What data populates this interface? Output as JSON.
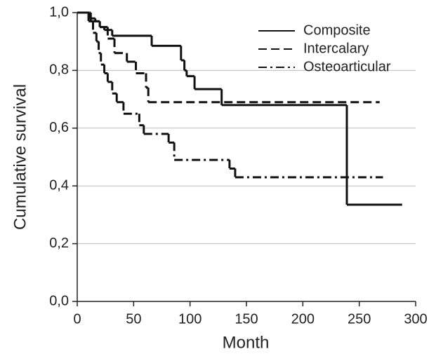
{
  "chart_data": {
    "type": "step",
    "x_label": "Month",
    "y_label": "Cumulative survival",
    "xlim": [
      0,
      300
    ],
    "xticks": [
      0,
      50,
      100,
      150,
      200,
      250,
      300
    ],
    "ylim": [
      0,
      1
    ],
    "yticks": [
      {
        "value": 0,
        "label": "0,0"
      },
      {
        "value": 0.2,
        "label": "0,2"
      },
      {
        "value": 0.4,
        "label": "0,4"
      },
      {
        "value": 0.6,
        "label": "0,6"
      },
      {
        "value": 0.8,
        "label": "0,8"
      },
      {
        "value": 1,
        "label": "1,0"
      }
    ],
    "grid": true,
    "legend": "top-right",
    "series": [
      {
        "name": "Composite",
        "color": "#111111",
        "dash": "solid",
        "x": [
          0,
          11,
          16,
          20,
          24,
          31,
          66,
          92,
          95,
          97,
          104,
          128,
          239,
          288
        ],
        "values": [
          1,
          0.98,
          0.97,
          0.95,
          0.94,
          0.92,
          0.885,
          0.835,
          0.8,
          0.78,
          0.735,
          0.68,
          0.335,
          0.335
        ]
      },
      {
        "name": "Intercalary",
        "color": "#111111",
        "dash": "dashed",
        "x": [
          0,
          12,
          20,
          27,
          33,
          44,
          52,
          61,
          63,
          268
        ],
        "values": [
          1,
          0.97,
          0.95,
          0.91,
          0.86,
          0.83,
          0.79,
          0.74,
          0.69,
          0.69
        ]
      },
      {
        "name": "Osteoarticular",
        "color": "#111111",
        "dash": "dashdot",
        "x": [
          0,
          10,
          14,
          17,
          19,
          21,
          24,
          27,
          31,
          35,
          41,
          55,
          59,
          81,
          86,
          135,
          140,
          271
        ],
        "values": [
          1,
          0.97,
          0.93,
          0.9,
          0.86,
          0.82,
          0.79,
          0.76,
          0.72,
          0.69,
          0.65,
          0.61,
          0.58,
          0.55,
          0.49,
          0.46,
          0.43,
          0.43
        ]
      }
    ]
  }
}
